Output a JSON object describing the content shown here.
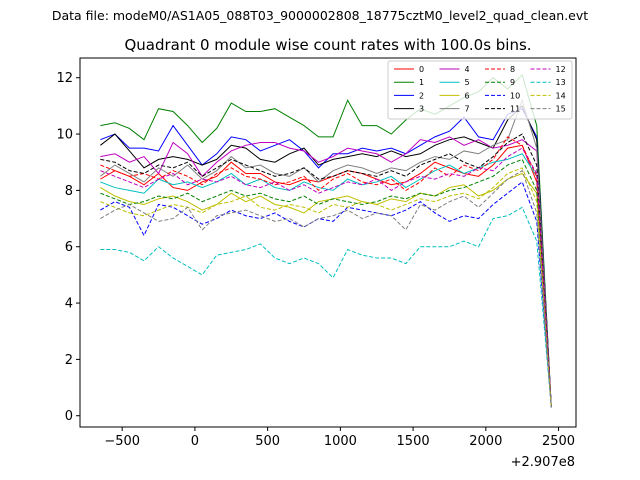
{
  "figure": {
    "suptitle": "Data file: modeM0/AS1A05_088T03_9000002808_18775cztM0_level2_quad_clean.evt",
    "title": "Quadrant 0 module wise count rates with 100.0s bins.",
    "x_offset_label": "+2.907e8"
  },
  "chart_data": {
    "type": "line",
    "title": "Quadrant 0 module wise count rates with 100.0s bins.",
    "xlabel": "",
    "ylabel": "",
    "xlim": [
      -790,
      2620
    ],
    "ylim": [
      -0.4,
      12.7
    ],
    "x_ticks": [
      -500,
      0,
      500,
      1000,
      1500,
      2000,
      2500
    ],
    "x_tick_labels": [
      "−500",
      "0",
      "500",
      "1000",
      "1500",
      "2000",
      "2500"
    ],
    "y_ticks": [
      0,
      2,
      4,
      6,
      8,
      10,
      12
    ],
    "y_tick_labels": [
      "0",
      "2",
      "4",
      "6",
      "8",
      "10",
      "12"
    ],
    "x_offset": "+2.907e8",
    "grid": false,
    "legend_position": "top-right",
    "legend_columns": 4,
    "x": [
      -650,
      -550,
      -450,
      -350,
      -250,
      -150,
      -50,
      50,
      150,
      250,
      350,
      450,
      550,
      650,
      750,
      850,
      950,
      1050,
      1150,
      1250,
      1350,
      1450,
      1550,
      1650,
      1750,
      1850,
      1950,
      2050,
      2150,
      2250,
      2350,
      2450
    ],
    "series": [
      {
        "name": "0",
        "color": "#ff0000",
        "dash": "solid",
        "values": [
          8.4,
          8.7,
          8.5,
          8.2,
          8.6,
          8.1,
          8.0,
          8.3,
          8.5,
          9.0,
          8.6,
          8.6,
          8.3,
          8.2,
          8.4,
          8.3,
          8.5,
          8.7,
          8.6,
          8.4,
          8.2,
          8.3,
          8.6,
          9.0,
          8.8,
          8.6,
          8.5,
          8.9,
          9.5,
          9.6,
          8.3,
          0.3
        ]
      },
      {
        "name": "1",
        "color": "#008000",
        "dash": "solid",
        "values": [
          10.3,
          10.4,
          10.2,
          9.8,
          10.9,
          10.8,
          10.3,
          9.7,
          10.2,
          11.1,
          10.8,
          10.8,
          10.9,
          10.6,
          10.3,
          9.9,
          9.9,
          11.2,
          10.3,
          10.3,
          10.0,
          10.5,
          10.9,
          10.7,
          11.0,
          11.3,
          11.5,
          12.0,
          11.6,
          12.1,
          10.3,
          0.3
        ]
      },
      {
        "name": "2",
        "color": "#0000ff",
        "dash": "solid",
        "values": [
          9.8,
          10.0,
          9.5,
          9.5,
          9.4,
          10.3,
          9.6,
          8.9,
          9.3,
          9.9,
          9.8,
          9.4,
          9.6,
          9.8,
          9.4,
          8.8,
          9.3,
          9.3,
          9.5,
          9.4,
          9.5,
          9.3,
          9.6,
          9.9,
          10.1,
          10.6,
          9.9,
          9.8,
          10.7,
          10.9,
          9.9,
          0.3
        ]
      },
      {
        "name": "3",
        "color": "#000000",
        "dash": "solid",
        "values": [
          9.6,
          10.0,
          9.4,
          8.8,
          9.1,
          9.2,
          9.1,
          8.9,
          9.1,
          9.6,
          9.5,
          9.1,
          9.0,
          9.3,
          9.5,
          8.9,
          9.1,
          9.2,
          9.3,
          9.2,
          9.4,
          9.2,
          9.3,
          9.6,
          9.8,
          9.9,
          9.7,
          9.5,
          10.5,
          11.0,
          9.8,
          0.3
        ]
      },
      {
        "name": "4",
        "color": "#bf00bf",
        "dash": "solid",
        "values": [
          9.2,
          9.3,
          9.0,
          9.2,
          8.6,
          9.7,
          9.3,
          8.5,
          9.0,
          9.4,
          9.6,
          9.7,
          9.7,
          9.5,
          9.4,
          9.0,
          9.2,
          9.5,
          9.4,
          9.3,
          9.0,
          9.3,
          9.8,
          9.7,
          9.9,
          9.6,
          9.8,
          9.5,
          9.6,
          9.8,
          9.4,
          0.3
        ]
      },
      {
        "name": "5",
        "color": "#00bfbf",
        "dash": "solid",
        "values": [
          8.3,
          8.1,
          8.0,
          7.9,
          8.4,
          8.2,
          8.3,
          8.1,
          8.3,
          8.6,
          8.2,
          8.4,
          8.1,
          8.0,
          8.3,
          8.1,
          8.0,
          8.4,
          8.2,
          8.3,
          8.5,
          8.1,
          8.4,
          8.7,
          8.9,
          8.6,
          8.8,
          9.0,
          9.1,
          9.3,
          8.5,
          0.3
        ]
      },
      {
        "name": "6",
        "color": "#bfbf00",
        "dash": "solid",
        "values": [
          8.1,
          7.8,
          7.6,
          7.5,
          7.7,
          7.8,
          7.6,
          7.3,
          7.5,
          7.9,
          7.6,
          7.8,
          7.5,
          7.4,
          7.2,
          7.6,
          7.7,
          7.8,
          7.6,
          7.5,
          7.7,
          7.6,
          7.9,
          7.8,
          8.1,
          8.2,
          7.8,
          8.0,
          8.4,
          8.6,
          7.9,
          0.3
        ]
      },
      {
        "name": "7",
        "color": "#808080",
        "dash": "solid",
        "values": [
          8.5,
          8.9,
          8.6,
          8.3,
          8.8,
          8.5,
          8.9,
          8.4,
          8.7,
          9.2,
          8.8,
          8.9,
          8.6,
          8.5,
          8.8,
          8.3,
          8.7,
          8.9,
          8.8,
          8.6,
          8.8,
          8.7,
          9.0,
          9.2,
          9.1,
          9.4,
          9.3,
          9.6,
          9.8,
          11.2,
          9.5,
          0.3
        ]
      },
      {
        "name": "8",
        "color": "#ff0000",
        "dash": "dashed",
        "values": [
          8.9,
          8.7,
          8.5,
          8.6,
          8.4,
          8.7,
          8.5,
          8.2,
          8.6,
          8.8,
          8.5,
          8.4,
          8.2,
          8.3,
          8.5,
          8.0,
          8.4,
          8.6,
          8.3,
          8.2,
          8.4,
          8.0,
          8.3,
          8.8,
          8.5,
          8.9,
          8.7,
          9.1,
          9.9,
          9.6,
          8.5,
          0.3
        ]
      },
      {
        "name": "9",
        "color": "#008000",
        "dash": "dashed",
        "values": [
          7.9,
          7.7,
          7.5,
          7.6,
          7.8,
          7.7,
          7.9,
          7.6,
          7.8,
          8.0,
          7.8,
          7.9,
          7.7,
          7.6,
          7.8,
          7.5,
          7.7,
          7.6,
          7.5,
          7.6,
          7.8,
          7.7,
          7.9,
          7.8,
          8.0,
          8.1,
          8.3,
          8.5,
          8.9,
          9.1,
          8.0,
          0.3
        ]
      },
      {
        "name": "10",
        "color": "#0000ff",
        "dash": "dashed",
        "values": [
          7.3,
          7.6,
          7.4,
          6.4,
          7.5,
          7.4,
          7.1,
          6.8,
          7.0,
          7.3,
          7.1,
          7.0,
          7.2,
          6.9,
          6.7,
          7.0,
          6.9,
          7.4,
          7.3,
          7.2,
          7.1,
          7.3,
          7.6,
          7.2,
          6.9,
          7.1,
          7.0,
          7.5,
          7.9,
          8.3,
          6.9,
          0.3
        ]
      },
      {
        "name": "11",
        "color": "#000000",
        "dash": "dashed",
        "values": [
          9.1,
          9.0,
          8.7,
          8.6,
          8.9,
          8.8,
          9.0,
          8.5,
          8.8,
          9.1,
          8.9,
          8.7,
          8.5,
          8.6,
          8.8,
          8.4,
          8.5,
          8.7,
          8.6,
          8.5,
          8.7,
          8.5,
          8.9,
          9.1,
          9.3,
          9.0,
          8.8,
          9.2,
          9.7,
          10.0,
          8.9,
          0.3
        ]
      },
      {
        "name": "12",
        "color": "#bf00bf",
        "dash": "dashed",
        "values": [
          8.7,
          8.5,
          8.3,
          8.1,
          8.4,
          8.6,
          8.2,
          8.4,
          8.3,
          8.5,
          8.2,
          8.1,
          8.3,
          8.0,
          8.2,
          7.9,
          8.1,
          8.3,
          8.2,
          8.4,
          8.0,
          8.3,
          8.5,
          8.4,
          8.6,
          8.5,
          8.8,
          8.7,
          9.2,
          9.5,
          8.6,
          0.3
        ]
      },
      {
        "name": "13",
        "color": "#00bfbf",
        "dash": "dashed",
        "values": [
          5.9,
          5.9,
          5.8,
          5.5,
          6.0,
          5.6,
          5.3,
          5.0,
          5.7,
          5.8,
          5.9,
          6.1,
          5.6,
          5.4,
          5.6,
          5.4,
          4.9,
          5.9,
          5.7,
          5.6,
          5.6,
          5.4,
          6.0,
          6.0,
          6.0,
          6.2,
          6.0,
          7.0,
          7.1,
          7.4,
          6.2,
          0.3
        ]
      },
      {
        "name": "14",
        "color": "#bfbf00",
        "dash": "dashed",
        "values": [
          7.6,
          7.4,
          7.2,
          7.1,
          7.3,
          7.5,
          7.4,
          7.2,
          7.5,
          7.6,
          7.8,
          7.4,
          7.3,
          7.5,
          7.4,
          7.2,
          7.5,
          7.4,
          7.6,
          7.5,
          7.3,
          7.5,
          7.7,
          7.6,
          7.8,
          7.9,
          7.7,
          8.1,
          8.6,
          8.8,
          7.6,
          0.3
        ]
      },
      {
        "name": "15",
        "color": "#808080",
        "dash": "dashed",
        "values": [
          7.0,
          7.3,
          7.5,
          7.2,
          6.9,
          7.0,
          7.4,
          6.6,
          7.1,
          7.2,
          7.3,
          7.1,
          6.9,
          7.0,
          6.7,
          7.0,
          7.1,
          7.3,
          7.0,
          7.2,
          7.1,
          6.6,
          7.5,
          7.3,
          7.6,
          7.8,
          7.4,
          7.9,
          8.4,
          8.7,
          7.2,
          0.3
        ]
      }
    ]
  }
}
